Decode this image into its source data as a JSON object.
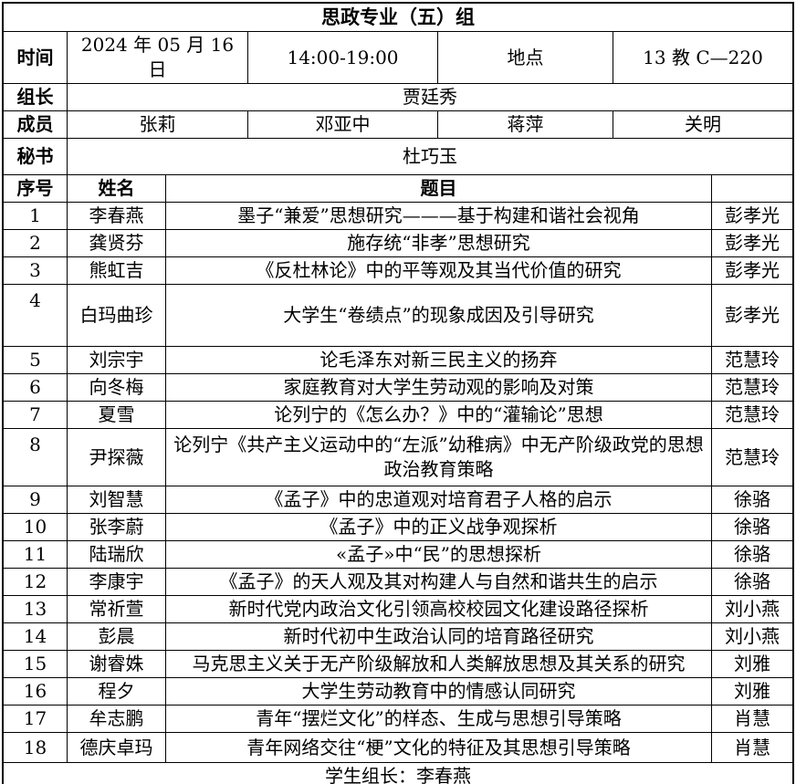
{
  "title": "思政专业（五）组",
  "info": {
    "time_label": "时间",
    "date": "2024 年 05 月 16 日",
    "time_range": "14:00-19:00",
    "place_label": "地点",
    "room": "13 教 C—220"
  },
  "committee": {
    "leader_label": "组长",
    "leader": "贾廷秀",
    "members_label": "成员",
    "members": [
      "张莉",
      "邓亚中",
      "蒋萍",
      "关明"
    ],
    "secretary_label": "秘书",
    "secretary": "杜巧玉"
  },
  "list_header": {
    "no": "序号",
    "name": "姓名",
    "topic": "题目",
    "advisor": ""
  },
  "students": [
    {
      "no": "1",
      "name": "李春燕",
      "topic": "墨子“兼爱”思想研究———基于构建和谐社会视角",
      "advisor": "彭孝光"
    },
    {
      "no": "2",
      "name": "龚贤芬",
      "topic": "施存统“非孝”思想研究",
      "advisor": "彭孝光"
    },
    {
      "no": "3",
      "name": "熊虹吉",
      "topic": "《反杜林论》中的平等观及其当代价值的研究",
      "advisor": "彭孝光"
    },
    {
      "no": "4",
      "name": "白玛曲珍",
      "topic": "大学生“卷绩点”的现象成因及引导研究",
      "advisor": "彭孝光"
    },
    {
      "no": "5",
      "name": "刘宗宇",
      "topic": "论毛泽东对新三民主义的扬弃",
      "advisor": "范慧玲"
    },
    {
      "no": "6",
      "name": "向冬梅",
      "topic": "家庭教育对大学生劳动观的影响及对策",
      "advisor": "范慧玲"
    },
    {
      "no": "7",
      "name": "夏雪",
      "topic": "论列宁的《怎么办？》中的“灌输论”思想",
      "advisor": "范慧玲"
    },
    {
      "no": "8",
      "name": "尹探薇",
      "topic": "论列宁《共产主义运动中的“左派”幼稚病》中无产阶级政党的思想政治教育策略",
      "advisor": "范慧玲"
    },
    {
      "no": "9",
      "name": "刘智慧",
      "topic": "《孟子》中的忠道观对培育君子人格的启示",
      "advisor": "徐骆"
    },
    {
      "no": "10",
      "name": "张李蔚",
      "topic": "《孟子》中的正义战争观探析",
      "advisor": "徐骆"
    },
    {
      "no": "11",
      "name": "陆瑞欣",
      "topic": "«孟子»中“民”的思想探析",
      "advisor": "徐骆"
    },
    {
      "no": "12",
      "name": "李康宇",
      "topic": "《孟子》的天人观及其对构建人与自然和谐共生的启示",
      "advisor": "徐骆"
    },
    {
      "no": "13",
      "name": "常祈萱",
      "topic": "新时代党内政治文化引领高校校园文化建设路径探析",
      "advisor": "刘小燕"
    },
    {
      "no": "14",
      "name": "彭晨",
      "topic": "新时代初中生政治认同的培育路径研究",
      "advisor": "刘小燕"
    },
    {
      "no": "15",
      "name": "谢睿姝",
      "topic": "马克思主义关于无产阶级解放和人类解放思想及其关系的研究",
      "advisor": "刘雅"
    },
    {
      "no": "16",
      "name": "程夕",
      "topic": "大学生劳动教育中的情感认同研究",
      "advisor": "刘雅"
    },
    {
      "no": "17",
      "name": "牟志鹏",
      "topic": "青年“摆烂文化”的样态、生成与思想引导策略",
      "advisor": "肖慧"
    },
    {
      "no": "18",
      "name": "德庆卓玛",
      "topic": "青年网络交往“梗”文化的特征及其思想引导策略",
      "advisor": "肖慧"
    }
  ],
  "footer": "学生组长：李春燕"
}
